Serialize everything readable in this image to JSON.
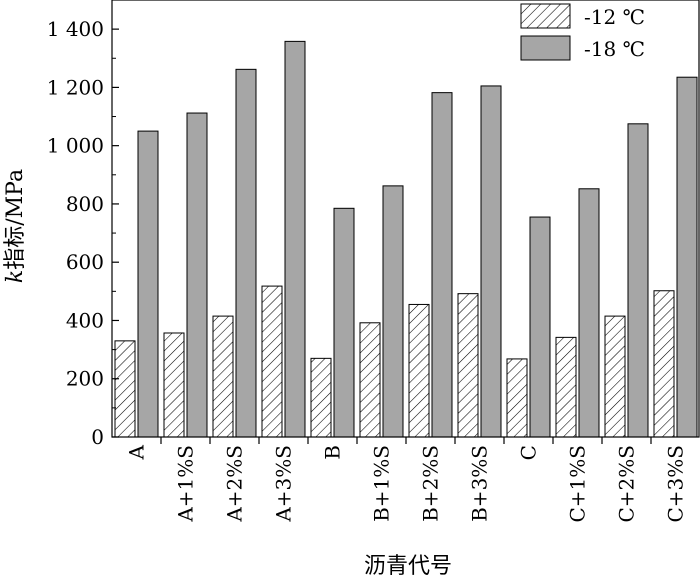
{
  "chart_data": {
    "type": "bar",
    "xlabel": "沥青代号",
    "ylabel_italic": "k",
    "ylabel_rest": "指标/MPa",
    "ylim": [
      0,
      1500
    ],
    "yticks": [
      0,
      200,
      400,
      600,
      800,
      1000,
      1200,
      1400
    ],
    "ytick_labels": [
      "0",
      "200",
      "400",
      "600",
      "800",
      "1 000",
      "1 200",
      "1 400"
    ],
    "categories": [
      "A",
      "A+1%S",
      "A+2%S",
      "A+3%S",
      "B",
      "B+1%S",
      "B+2%S",
      "B+3%S",
      "C",
      "C+1%S",
      "C+2%S",
      "C+3%S"
    ],
    "series": [
      {
        "name": "-12 ℃",
        "fill": "hatch",
        "values": [
          330,
          357,
          415,
          518,
          270,
          392,
          455,
          492,
          268,
          342,
          415,
          502
        ]
      },
      {
        "name": "-18 ℃",
        "fill": "#a6a6a6",
        "values": [
          1050,
          1112,
          1262,
          1358,
          785,
          862,
          1182,
          1205,
          755,
          852,
          1075,
          1235
        ]
      }
    ],
    "legend_position": "top-right",
    "grid": false
  }
}
